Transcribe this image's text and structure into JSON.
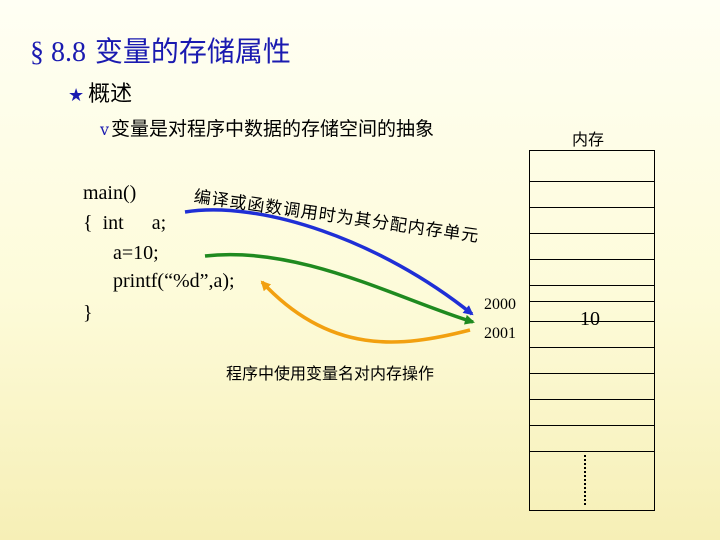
{
  "title": {
    "section": "§ 8.8",
    "text": "变量的存储属性"
  },
  "bullet1": "概述",
  "bullet2": "变量是对程序中数据的存储空间的抽象",
  "memory_label": "内存",
  "code": {
    "line1": "main()",
    "line2_brace": "{",
    "line2_type": "int",
    "line2_var": "a;",
    "line3": "a=10;",
    "line4": "printf(“%d”,a);",
    "line5": "}"
  },
  "annotation_compile": "编译或函数调用时为其分配内存单元",
  "annotation_use": "程序中使用变量名对内存操作",
  "addresses": [
    "2000",
    "2001"
  ],
  "cell_value": "10",
  "colors": {
    "title": "#1a1ab0",
    "arrow_blue": "#1f2fd6",
    "arrow_green": "#1f8a1f",
    "arrow_orange": "#f2a010"
  }
}
